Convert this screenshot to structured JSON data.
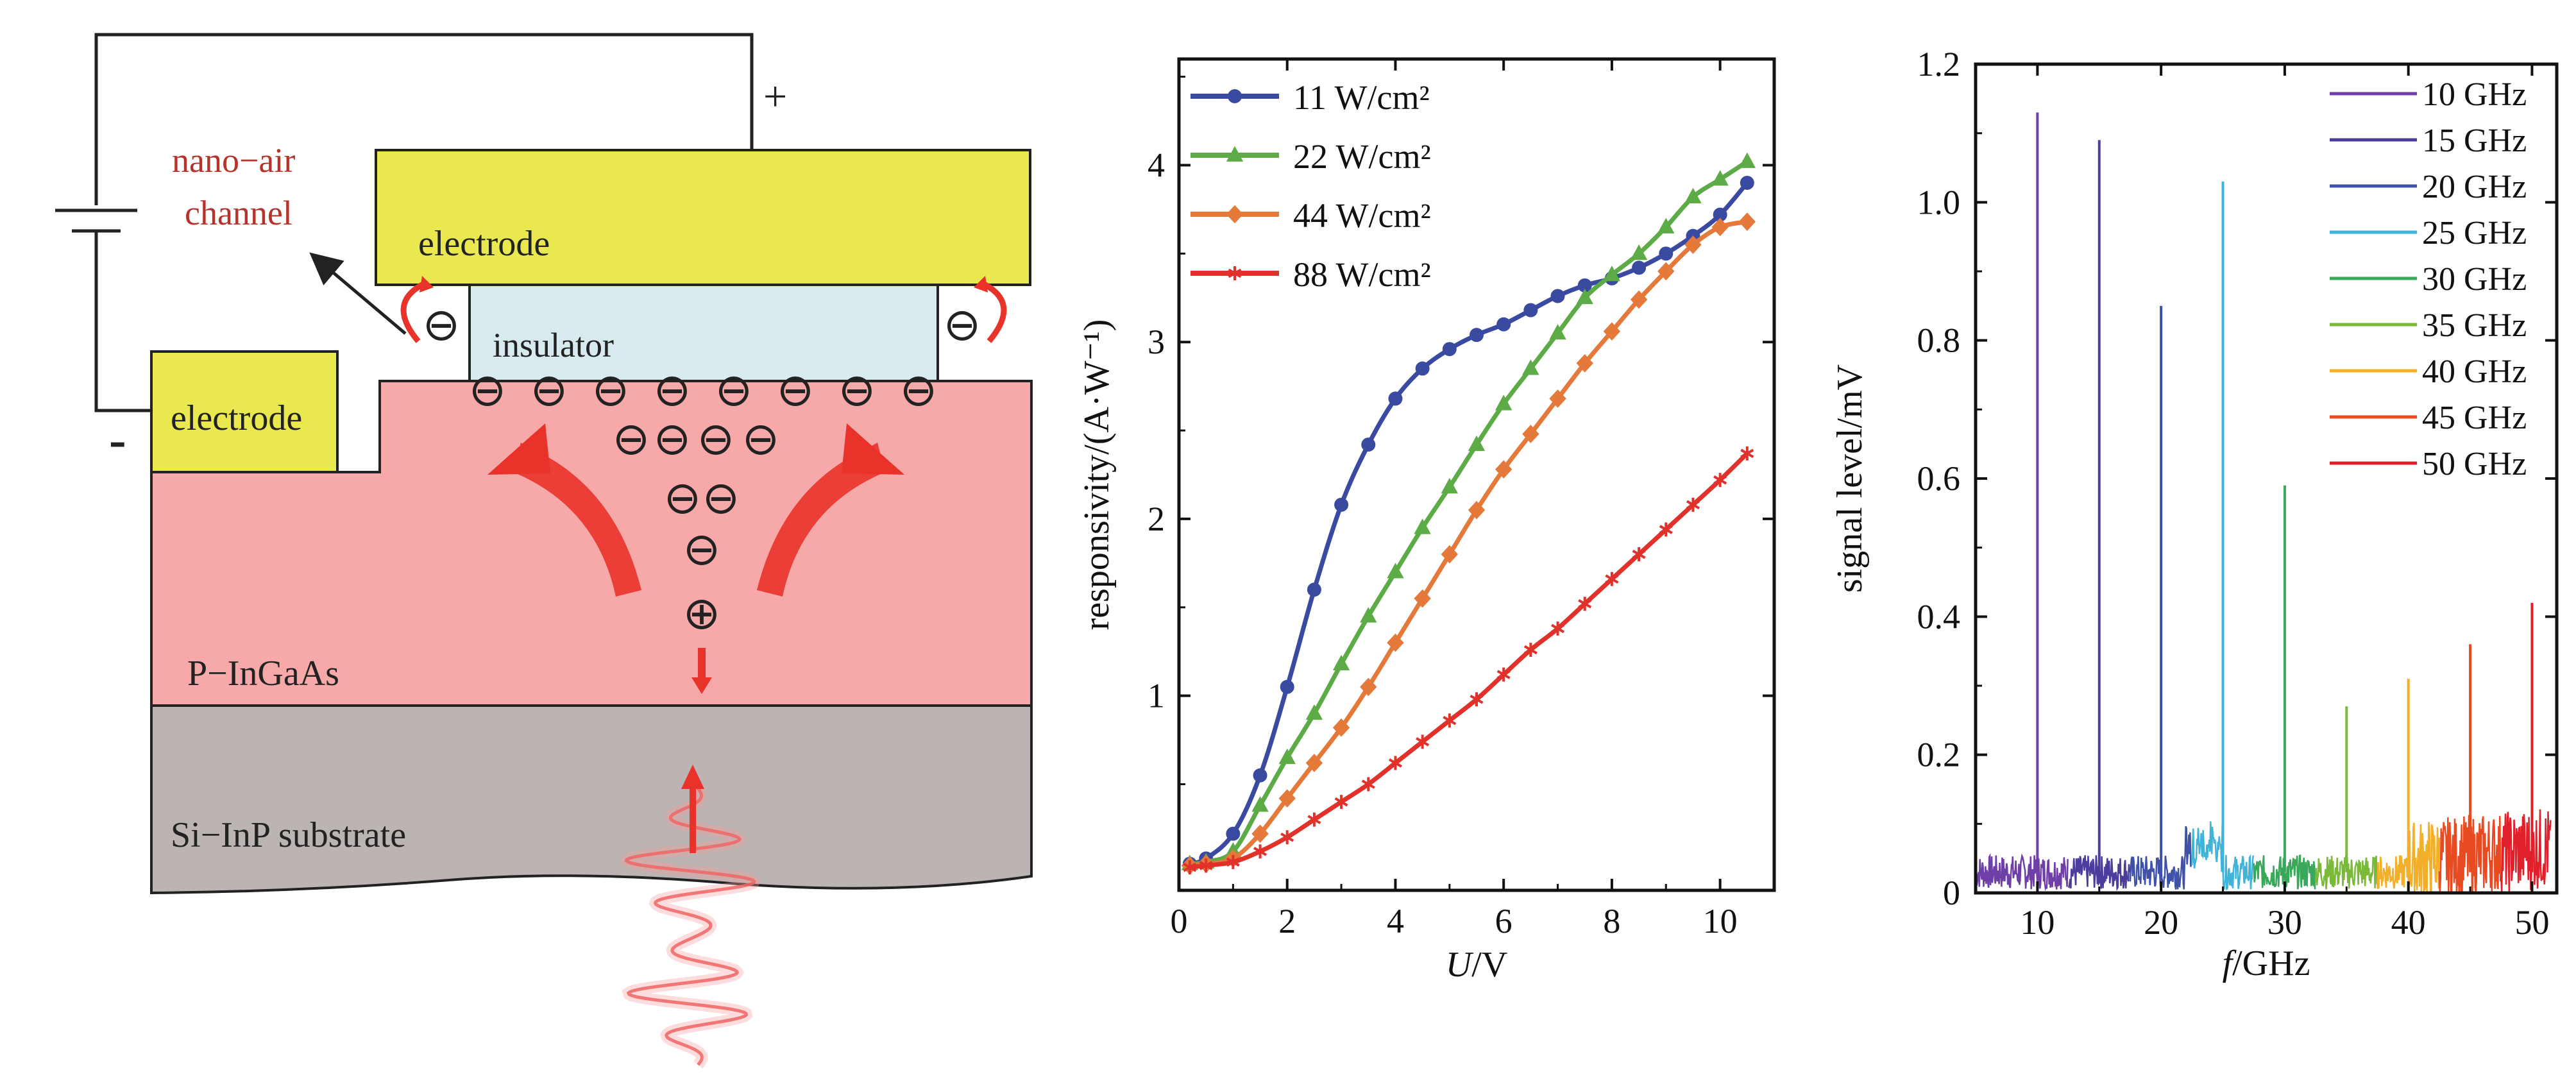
{
  "colors": {
    "electrode": "#e9e84f",
    "insulator": "#d7eaee",
    "p_ingaas": "#f7a8a8",
    "substrate": "#bbb4b3",
    "red": "#e8322a",
    "dark_red": "#b5332a",
    "outline": "#222222"
  },
  "device": {
    "channel_label_line1": "nano−air",
    "channel_label_line2": "channel",
    "plus_sign": "+",
    "minus_sign": "-",
    "electrode_top_label": "electrode",
    "electrode_left_label": "electrode",
    "insulator_label": "insulator",
    "p_ingaas_label": "P−InGaAs",
    "substrate_label": "Si−InP substrate",
    "electron_symbol": "⊖",
    "hole_symbol": "⊕"
  },
  "chart_data": [
    {
      "type": "line",
      "xlabel_italic": "U",
      "xlabel_rest": "/V",
      "ylabel": "responsivity/(A·W⁻¹)",
      "xlim": [
        0,
        11
      ],
      "ylim": [
        -0.1,
        4.6
      ],
      "xticks": [
        "0",
        "2",
        "4",
        "6",
        "8",
        "10"
      ],
      "yticks": [
        "1",
        "2",
        "3",
        "4"
      ],
      "legend_position": "top-left",
      "series": [
        {
          "name": "11 W/cm²",
          "color": "#3a4aa0",
          "marker": "circle",
          "x": [
            0.2,
            0.5,
            1.0,
            1.5,
            2.0,
            2.5,
            3.0,
            3.5,
            4.0,
            4.5,
            5.0,
            5.5,
            6.0,
            6.5,
            7.0,
            7.5,
            8.0,
            8.5,
            9.0,
            9.5,
            10.0,
            10.5
          ],
          "y": [
            0.05,
            0.08,
            0.22,
            0.55,
            1.05,
            1.6,
            2.08,
            2.42,
            2.68,
            2.85,
            2.96,
            3.04,
            3.1,
            3.18,
            3.26,
            3.32,
            3.36,
            3.42,
            3.5,
            3.6,
            3.72,
            3.9
          ]
        },
        {
          "name": "22 W/cm²",
          "color": "#5cab46",
          "marker": "triangle",
          "x": [
            0.2,
            0.5,
            1.0,
            1.5,
            2.0,
            2.5,
            3.0,
            3.5,
            4.0,
            4.5,
            5.0,
            5.5,
            6.0,
            6.5,
            7.0,
            7.5,
            8.0,
            8.5,
            9.0,
            9.5,
            10.0,
            10.5
          ],
          "y": [
            0.05,
            0.06,
            0.12,
            0.38,
            0.65,
            0.9,
            1.18,
            1.45,
            1.7,
            1.95,
            2.18,
            2.42,
            2.65,
            2.85,
            3.05,
            3.25,
            3.38,
            3.5,
            3.65,
            3.82,
            3.92,
            4.02
          ]
        },
        {
          "name": "44 W/cm²",
          "color": "#e4793a",
          "marker": "diamond",
          "x": [
            0.2,
            0.5,
            1.0,
            1.5,
            2.0,
            2.5,
            3.0,
            3.5,
            4.0,
            4.5,
            5.0,
            5.5,
            6.0,
            6.5,
            7.0,
            7.5,
            8.0,
            8.5,
            9.0,
            9.5,
            10.0,
            10.5
          ],
          "y": [
            0.04,
            0.05,
            0.08,
            0.22,
            0.42,
            0.62,
            0.82,
            1.05,
            1.3,
            1.55,
            1.8,
            2.05,
            2.28,
            2.48,
            2.68,
            2.88,
            3.06,
            3.24,
            3.4,
            3.55,
            3.65,
            3.68
          ]
        },
        {
          "name": "88 W/cm²",
          "color": "#e0312b",
          "marker": "star",
          "x": [
            0.2,
            0.5,
            1.0,
            1.5,
            2.0,
            2.5,
            3.0,
            3.5,
            4.0,
            4.5,
            5.0,
            5.5,
            6.0,
            6.5,
            7.0,
            7.5,
            8.0,
            8.5,
            9.0,
            9.5,
            10.0,
            10.5
          ],
          "y": [
            0.03,
            0.04,
            0.06,
            0.12,
            0.2,
            0.3,
            0.4,
            0.5,
            0.62,
            0.74,
            0.86,
            0.98,
            1.12,
            1.26,
            1.38,
            1.52,
            1.66,
            1.8,
            1.94,
            2.08,
            2.22,
            2.37
          ]
        }
      ]
    },
    {
      "type": "line",
      "xlabel_italic": "f",
      "xlabel_rest": "/GHz",
      "ylabel": "signal level/mV",
      "xlim": [
        5,
        52
      ],
      "ylim": [
        0,
        1.2
      ],
      "xticks": [
        "10",
        "20",
        "30",
        "40",
        "50"
      ],
      "yticks": [
        "0",
        "0.2",
        "0.4",
        "0.6",
        "0.8",
        "1.0",
        "1.2"
      ],
      "legend_position": "top-right",
      "series": [
        {
          "name": "10 GHz",
          "color": "#6e3fa6",
          "peak_x": 10,
          "peak_y": 1.13,
          "band": [
            5,
            12.5
          ]
        },
        {
          "name": "15 GHz",
          "color": "#4c3d9c",
          "peak_x": 15,
          "peak_y": 1.09,
          "band": [
            12.5,
            17.5
          ]
        },
        {
          "name": "20 GHz",
          "color": "#3f52a8",
          "peak_x": 20,
          "peak_y": 0.85,
          "band": [
            17.5,
            22.5
          ]
        },
        {
          "name": "25 GHz",
          "color": "#3fb4d8",
          "peak_x": 25,
          "peak_y": 1.03,
          "band": [
            22.5,
            27.5
          ]
        },
        {
          "name": "30 GHz",
          "color": "#39a85a",
          "peak_x": 30,
          "peak_y": 0.59,
          "band": [
            27.5,
            32.5
          ]
        },
        {
          "name": "35 GHz",
          "color": "#7ab93a",
          "peak_x": 35,
          "peak_y": 0.27,
          "band": [
            32.5,
            37.5
          ]
        },
        {
          "name": "40 GHz",
          "color": "#f2b02a",
          "peak_x": 40,
          "peak_y": 0.31,
          "band": [
            37.5,
            42.5
          ]
        },
        {
          "name": "45 GHz",
          "color": "#e84a22",
          "peak_x": 45,
          "peak_y": 0.36,
          "band": [
            42.5,
            47.5
          ]
        },
        {
          "name": "50 GHz",
          "color": "#e0212b",
          "peak_x": 50,
          "peak_y": 0.42,
          "band": [
            47.5,
            51.5
          ]
        }
      ]
    }
  ]
}
